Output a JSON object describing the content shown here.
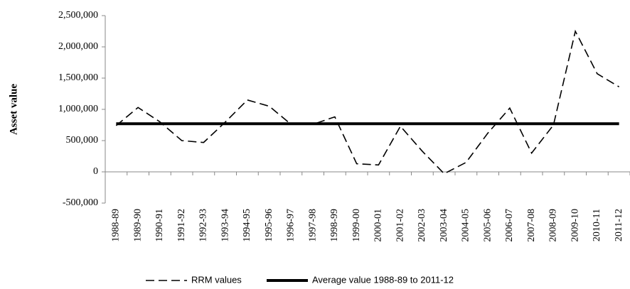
{
  "chart_data": {
    "type": "line",
    "y_label": "Asset value",
    "categories": [
      "1988-89",
      "1989-90",
      "1990-91",
      "1991-92",
      "1992-93",
      "1993-94",
      "1994-95",
      "1995-96",
      "1996-97",
      "1997-98",
      "1998-99",
      "1999-00",
      "2000-01",
      "2001-02",
      "2002-03",
      "2003-04",
      "2004-05",
      "2005-06",
      "2006-07",
      "2007-08",
      "2008-09",
      "2009-10",
      "2010-11",
      "2011-12"
    ],
    "series": [
      {
        "name": "RRM values",
        "color": "#000000",
        "line_style": "dashed",
        "values": [
          740000,
          1030000,
          800000,
          500000,
          470000,
          800000,
          1150000,
          1050000,
          760000,
          760000,
          880000,
          130000,
          110000,
          730000,
          330000,
          -30000,
          150000,
          620000,
          1020000,
          300000,
          750000,
          2250000,
          1570000,
          1360000
        ]
      },
      {
        "name": "Average value 1988-89 to 2011-12",
        "color": "#000000",
        "line_style": "solid",
        "values": [
          770000,
          770000,
          770000,
          770000,
          770000,
          770000,
          770000,
          770000,
          770000,
          770000,
          770000,
          770000,
          770000,
          770000,
          770000,
          770000,
          770000,
          770000,
          770000,
          770000,
          770000,
          770000,
          770000,
          770000
        ]
      }
    ],
    "ylim": [
      -500000,
      2500000
    ],
    "yticks": [
      {
        "value": -500000,
        "label": "-500,000"
      },
      0,
      {
        "value": 500000,
        "label": "500,000"
      },
      {
        "value": 1000000,
        "label": "1,000,000"
      },
      {
        "value": 1500000,
        "label": "1,500,000"
      },
      {
        "value": 2000000,
        "label": "2,000,000"
      },
      {
        "value": 2500000,
        "label": "2,500,000"
      }
    ],
    "grid": false,
    "legend": "bottom"
  }
}
